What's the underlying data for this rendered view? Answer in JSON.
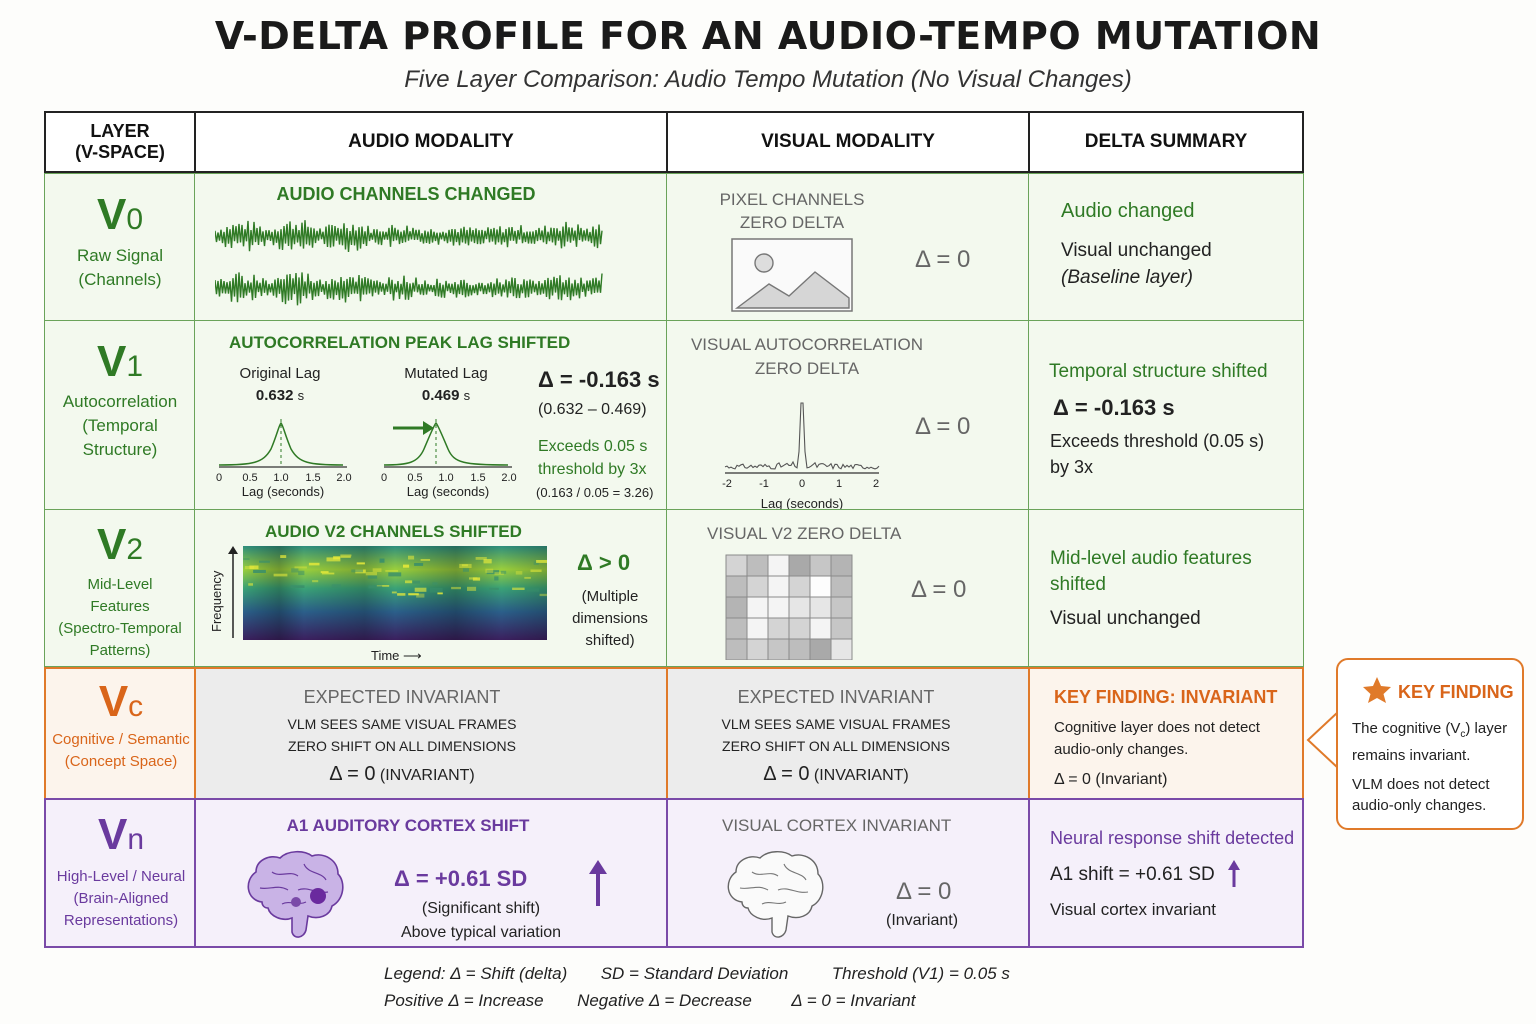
{
  "title": "V-DELTA PROFILE FOR AN AUDIO-TEMPO MUTATION",
  "subtitle": "Five Layer Comparison: Audio Tempo Mutation (No Visual Changes)",
  "headers": {
    "layer_line1": "LAYER",
    "layer_line2": "(V-SPACE)",
    "audio": "AUDIO MODALITY",
    "visual": "VISUAL MODALITY",
    "delta": "DELTA SUMMARY"
  },
  "rows": {
    "v0": {
      "symbol": "V",
      "sub": "0",
      "label1": "Raw Signal",
      "label2": "(Channels)",
      "audio_head": "AUDIO CHANNELS CHANGED",
      "visual_head1": "PIXEL CHANNELS",
      "visual_head2": "ZERO DELTA",
      "visual_delta": "Δ = 0",
      "sum1": "Audio changed",
      "sum2": "Visual unchanged",
      "sum3": "(Baseline layer)"
    },
    "v1": {
      "symbol": "V",
      "sub": "1",
      "label1": "Autocorrelation",
      "label2": "(Temporal",
      "label3": "Structure)",
      "audio_head": "AUTOCORRELATION PEAK LAG SHIFTED",
      "orig_label": "Original Lag",
      "orig_value": "0.632",
      "orig_unit": "s",
      "mut_label": "Mutated Lag",
      "mut_value": "0.469",
      "mut_unit": "s",
      "delta": "Δ = -0.163 s",
      "delta_calc": "(0.632 – 0.469)",
      "exceeds1": "Exceeds 0.05 s",
      "exceeds2": "threshold by 3x",
      "ratio": "(0.163 / 0.05 = 3.26)",
      "xlabel": "Lag (seconds)",
      "ticks": [
        "0",
        "0.5",
        "1.0",
        "1.5",
        "2.0"
      ],
      "visual_head1": "VISUAL AUTOCORRELATION",
      "visual_head2": "ZERO DELTA",
      "visual_ticks": [
        "-2",
        "-1",
        "0",
        "1",
        "2"
      ],
      "visual_xlabel": "Lag (seconds)",
      "visual_delta": "Δ = 0",
      "sum1": "Temporal structure shifted",
      "sum2": "Δ = -0.163 s",
      "sum3": "Exceeds threshold (0.05 s)",
      "sum4": "by 3x"
    },
    "v2": {
      "symbol": "V",
      "sub": "2",
      "label1": "Mid-Level",
      "label2": "Features",
      "label3": "(Spectro-Temporal",
      "label4": "Patterns)",
      "audio_head": "AUDIO V2 CHANNELS SHIFTED",
      "ylabel": "Frequency",
      "xlabel": "Time ⟶",
      "delta": "Δ > 0",
      "delta_note1": "(Multiple",
      "delta_note2": "dimensions",
      "delta_note3": "shifted)",
      "visual_head": "VISUAL V2 ZERO DELTA",
      "visual_delta": "Δ = 0",
      "sum1": "Mid-level audio features",
      "sum2": "shifted",
      "sum3": "Visual unchanged"
    },
    "vc": {
      "symbol": "V",
      "sub": "c",
      "label1": "Cognitive / Semantic",
      "label2": "(Concept Space)",
      "a_head": "EXPECTED INVARIANT",
      "a_line1": "VLM SEES SAME VISUAL FRAMES",
      "a_line2": "ZERO SHIFT ON ALL DIMENSIONS",
      "a_delta": "Δ = 0",
      "a_inv": "(INVARIANT)",
      "v_head": "EXPECTED INVARIANT",
      "v_line1": "VLM SEES SAME VISUAL FRAMES",
      "v_line2": "ZERO SHIFT ON ALL DIMENSIONS",
      "v_delta": "Δ = 0",
      "v_inv": "(INVARIANT)",
      "sum1": "KEY FINDING: INVARIANT",
      "sum2": "Cognitive layer does not detect",
      "sum3": "audio-only changes.",
      "sum4": "Δ = 0 (Invariant)"
    },
    "vn": {
      "symbol": "V",
      "sub": "n",
      "label1": "High-Level / Neural",
      "label2": "(Brain-Aligned",
      "label3": "Representations)",
      "audio_head": "A1 AUDITORY CORTEX SHIFT",
      "delta": "Δ = +0.61 SD",
      "note1": "(Significant shift)",
      "note2": "Above typical variation",
      "visual_head": "VISUAL CORTEX INVARIANT",
      "visual_delta": "Δ = 0",
      "visual_note": "(Invariant)",
      "sum1": "Neural response shift detected",
      "sum2": "A1 shift = +0.61 SD",
      "sum3": "Visual cortex invariant"
    }
  },
  "callout": {
    "title": "KEY FINDING",
    "line1a": "The cognitive (V",
    "line1sub": "c",
    "line1b": ") layer",
    "line2": "remains invariant.",
    "line3": "VLM does not detect",
    "line4": "audio-only changes."
  },
  "legend": {
    "l1": "Legend:  Δ = Shift (delta)",
    "l2": "SD = Standard Deviation",
    "l3": "Threshold (V1) = 0.05 s",
    "l4": "Positive Δ = Increase",
    "l5": "Negative Δ = Decrease",
    "l6": "Δ = 0 = Invariant"
  },
  "colors": {
    "green": "#2f7a25",
    "orange": "#d9651a",
    "purple": "#6a3a9e"
  }
}
